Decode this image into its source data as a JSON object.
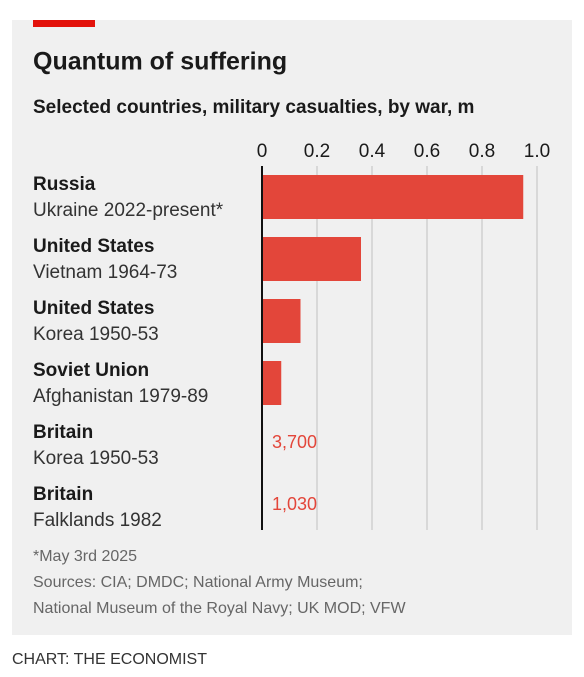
{
  "chart_data": {
    "type": "bar",
    "orientation": "horizontal",
    "title": "Quantum of suffering",
    "subtitle": "Selected countries, military casualties, by war, m",
    "groups": [
      "Russia",
      "United States",
      "United States",
      "Soviet Union",
      "Britain",
      "Britain"
    ],
    "categories": [
      "Ukraine 2022-present*",
      "Vietnam 1964-73",
      "Korea 1950-53",
      "Afghanistan 1979-89",
      "Korea 1950-53",
      "Falklands 1982"
    ],
    "values": [
      0.95,
      0.36,
      0.14,
      0.07,
      0.0037,
      0.00103
    ],
    "value_labels": [
      null,
      null,
      null,
      null,
      "3,700",
      "1,030"
    ],
    "color": "#e3463a",
    "xlim": [
      0,
      1
    ],
    "xticks": [
      0,
      0.2,
      0.4,
      0.6,
      0.8,
      {
        "value": 1,
        "label": "1.0"
      }
    ],
    "grid": true,
    "footnote": "*May 3rd 2025",
    "sources": [
      "Sources: CIA; DMDC; National Army Museum;",
      "National Museum of the Royal Navy; UK MOD; VFW"
    ],
    "credit": "CHART: THE ECONOMIST"
  }
}
